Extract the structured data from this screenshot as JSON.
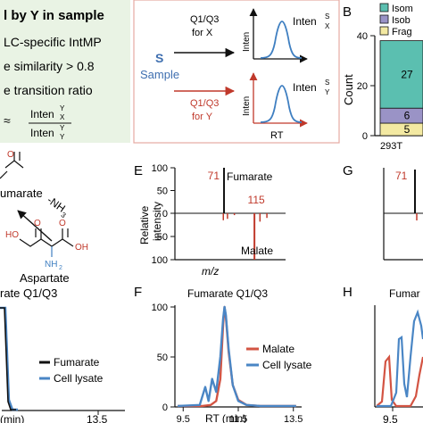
{
  "panel_letters": {
    "B": "B",
    "E": "E",
    "F": "F",
    "G": "G",
    "H": "H"
  },
  "panel_a": {
    "heading": "l by Y in sample",
    "bullets": [
      "LC-specific IntMP",
      "e similarity > 0.8",
      "e transition ratio"
    ],
    "approx_symbol": "≈",
    "ratio_num": "Inten",
    "ratio_num_sup": "Y",
    "ratio_num_sub": "X",
    "ratio_den": "Inten",
    "ratio_den_sup": "Y",
    "ratio_den_sub": "Y",
    "sample_symbol": "S",
    "sample_label": "Sample",
    "q_for_x_line1": "Q1/Q3",
    "q_for_x_line2": "for X",
    "q_for_y_line1": "Q1/Q3",
    "q_for_y_line2": "for Y",
    "inten_axis": "Inten",
    "inten_x_label": "Inten",
    "inten_x_sup": "S",
    "inten_x_sub": "X",
    "inten_y_label": "Inten",
    "inten_y_sup": "S",
    "inten_y_sub": "Y",
    "rt_axis": "RT"
  },
  "panel_c": {
    "fumarate_label": "umarate",
    "nh3_label": "-NH",
    "nh3_sub": "3",
    "aspartate_label": "Aspartate",
    "nh2_label": "NH",
    "nh2_sub": "2",
    "oh_label": "OH",
    "o_label": "O",
    "ho_label": "HO"
  },
  "panel_b": {
    "ylabel": "Count",
    "yticks": [
      "40",
      "20",
      "0"
    ],
    "xtick": "293T",
    "legend": [
      {
        "label": "Isom",
        "color": "#5bbfb0"
      },
      {
        "label": "Isob",
        "color": "#9a93c6"
      },
      {
        "label": "Frag",
        "color": "#f3e9a2"
      }
    ],
    "segment_labels": [
      "27",
      "6",
      "5"
    ]
  },
  "panel_d": {
    "title": "rate Q1/Q3",
    "xtick": "13.5",
    "xunit": "(min)",
    "legend": [
      {
        "label": "Fumarate",
        "color": "#111111"
      },
      {
        "label": "Cell lysate",
        "color": "#4a86c5"
      }
    ]
  },
  "panel_g": {
    "peak_label": "71"
  },
  "panel_h": {
    "title": "Fumar",
    "xtick": "9.5"
  },
  "chart_data": [
    {
      "type": "bar",
      "panel": "B",
      "categories": [
        "293T"
      ],
      "series": [
        {
          "name": "Isom",
          "values": [
            27
          ]
        },
        {
          "name": "Isob",
          "values": [
            6
          ]
        },
        {
          "name": "Frag",
          "values": [
            5
          ]
        }
      ],
      "ylabel": "Count",
      "ylim": [
        0,
        40
      ],
      "yticks": [
        0,
        20,
        40
      ],
      "stacked": true,
      "legend_position": "top"
    },
    {
      "type": "bar",
      "panel": "E",
      "title": "",
      "xlabel": "m/z",
      "ylabel": "Relative intensity",
      "xlim": [
        0,
        160
      ],
      "ylim": [
        -100,
        100
      ],
      "yticks": [
        100,
        50,
        0,
        50,
        100
      ],
      "upper": {
        "name": "Fumarate",
        "peaks": [
          {
            "mz": 71,
            "value": 100,
            "color": "#111111"
          }
        ]
      },
      "lower": {
        "name": "Malate",
        "peaks": [
          {
            "mz": 70,
            "value": -15
          },
          {
            "mz": 76,
            "value": -12
          },
          {
            "mz": 86,
            "value": -4
          },
          {
            "mz": 115,
            "value": -100
          },
          {
            "mz": 123,
            "value": -18
          },
          {
            "mz": 133,
            "value": -10
          }
        ]
      },
      "peak_labels": [
        {
          "text": "71",
          "mz": 71,
          "color": "#c0392b"
        },
        {
          "text": "115",
          "mz": 115,
          "color": "#c0392b"
        }
      ]
    },
    {
      "type": "line",
      "panel": "F",
      "title": "Fumarate Q1/Q3",
      "xlabel": "RT (min)",
      "xticks": [
        9.5,
        11.5,
        13.5
      ],
      "xlim": [
        9.2,
        13.8
      ],
      "yticks": [
        0,
        50,
        100
      ],
      "ylim": [
        0,
        100
      ],
      "series": [
        {
          "name": "Malate",
          "color": "#d35443",
          "points": [
            [
              9.3,
              1
            ],
            [
              10.2,
              1
            ],
            [
              10.5,
              2
            ],
            [
              10.7,
              6
            ],
            [
              10.85,
              28
            ],
            [
              10.95,
              82
            ],
            [
              11.0,
              100
            ],
            [
              11.05,
              90
            ],
            [
              11.15,
              55
            ],
            [
              11.3,
              22
            ],
            [
              11.5,
              7
            ],
            [
              11.8,
              2
            ],
            [
              12.3,
              1
            ],
            [
              13.6,
              1
            ]
          ]
        },
        {
          "name": "Cell lysate",
          "color": "#4a86c5",
          "points": [
            [
              9.3,
              1
            ],
            [
              10.1,
              2
            ],
            [
              10.3,
              20
            ],
            [
              10.42,
              6
            ],
            [
              10.55,
              28
            ],
            [
              10.7,
              15
            ],
            [
              10.85,
              50
            ],
            [
              10.95,
              88
            ],
            [
              11.0,
              100
            ],
            [
              11.05,
              92
            ],
            [
              11.15,
              58
            ],
            [
              11.3,
              22
            ],
            [
              11.5,
              6
            ],
            [
              11.8,
              2
            ],
            [
              12.3,
              1
            ],
            [
              13.6,
              1
            ]
          ]
        }
      ],
      "legend_position": "top-right"
    }
  ]
}
